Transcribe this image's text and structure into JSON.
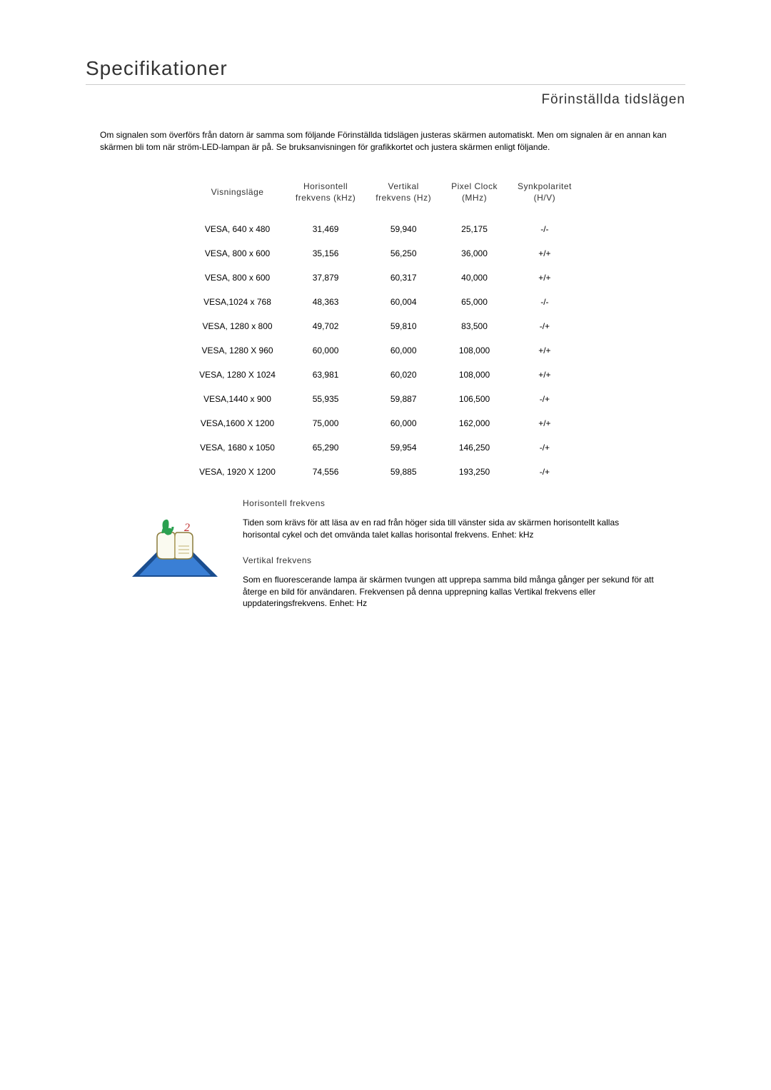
{
  "page": {
    "title": "Specifikationer",
    "section_title": "Förinställda tidslägen",
    "intro": "Om signalen som överförs från datorn är samma som följande Förinställda tidslägen justeras skärmen automatiskt. Men om signalen är en annan kan skärmen bli tom när ström-LED-lampan är på. Se bruksanvisningen för grafikkortet och justera skärmen enligt följande."
  },
  "table": {
    "headers": {
      "mode": "Visningsläge",
      "hfreq_l1": "Horisontell",
      "hfreq_l2": "frekvens (kHz)",
      "vfreq_l1": "Vertikal",
      "vfreq_l2": "frekvens (Hz)",
      "pixel_l1": "Pixel Clock",
      "pixel_l2": "(MHz)",
      "sync_l1": "Synkpolaritet",
      "sync_l2": "(H/V)"
    },
    "rows": [
      {
        "mode": "VESA, 640 x 480",
        "hfreq": "31,469",
        "vfreq": "59,940",
        "pixel": "25,175",
        "sync": "-/-"
      },
      {
        "mode": "VESA, 800 x 600",
        "hfreq": "35,156",
        "vfreq": "56,250",
        "pixel": "36,000",
        "sync": "+/+"
      },
      {
        "mode": "VESA, 800 x 600",
        "hfreq": "37,879",
        "vfreq": "60,317",
        "pixel": "40,000",
        "sync": "+/+"
      },
      {
        "mode": "VESA,1024 x 768",
        "hfreq": "48,363",
        "vfreq": "60,004",
        "pixel": "65,000",
        "sync": "-/-"
      },
      {
        "mode": "VESA, 1280 x 800",
        "hfreq": "49,702",
        "vfreq": "59,810",
        "pixel": "83,500",
        "sync": "-/+"
      },
      {
        "mode": "VESA, 1280 X 960",
        "hfreq": "60,000",
        "vfreq": "60,000",
        "pixel": "108,000",
        "sync": "+/+"
      },
      {
        "mode": "VESA, 1280 X 1024",
        "hfreq": "63,981",
        "vfreq": "60,020",
        "pixel": "108,000",
        "sync": "+/+"
      },
      {
        "mode": "VESA,1440 x 900",
        "hfreq": "55,935",
        "vfreq": "59,887",
        "pixel": "106,500",
        "sync": "-/+"
      },
      {
        "mode": "VESA,1600 X 1200",
        "hfreq": "75,000",
        "vfreq": "60,000",
        "pixel": "162,000",
        "sync": "+/+"
      },
      {
        "mode": "VESA, 1680 x 1050",
        "hfreq": "65,290",
        "vfreq": "59,954",
        "pixel": "146,250",
        "sync": "-/+"
      },
      {
        "mode": "VESA, 1920 X 1200",
        "hfreq": "74,556",
        "vfreq": "59,885",
        "pixel": "193,250",
        "sync": "-/+"
      }
    ]
  },
  "info": {
    "h_heading": "Horisontell frekvens",
    "h_body": "Tiden som krävs för att läsa av en rad från höger sida till vänster sida av skärmen horisontellt kallas horisontal cykel och det omvända talet kallas horisontal frekvens. Enhet: kHz",
    "v_heading": "Vertikal frekvens",
    "v_body": "Som en fluorescerande lampa är skärmen tvungen att upprepa samma bild många gånger per sekund för att återge en bild för användaren. Frekvensen på denna upprepning kallas Vertikal frekvens eller uppdateringsfrekvens. Enhet: Hz"
  },
  "colors": {
    "title_border": "#cccccc",
    "text": "#000000",
    "heading": "#333333",
    "bg": "#ffffff"
  }
}
